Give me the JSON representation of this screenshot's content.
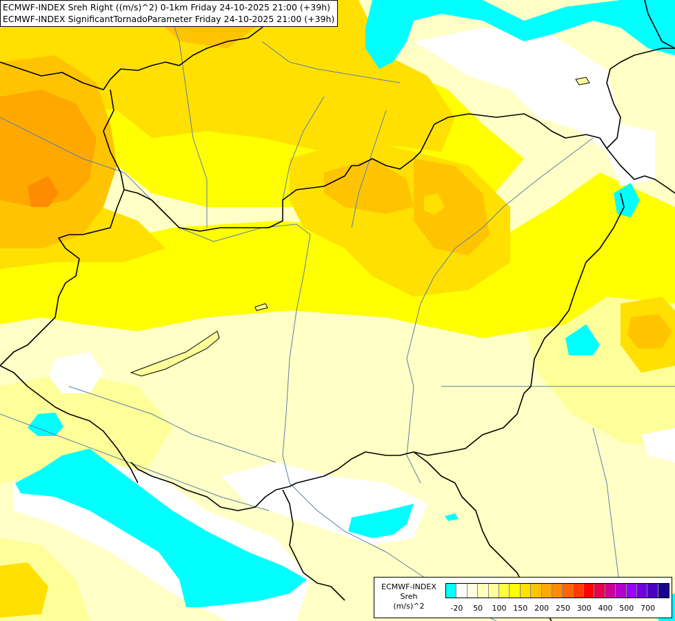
{
  "title_lines": [
    "ECMWF-INDEX Sreh Right ((m/s)^2) 0-1km Friday 24-10-2025 21:00 (+39h)",
    "ECMWF-INDEX SignificantTornadoParameter Friday 24-10-2025 21:00 (+39h)"
  ],
  "legend": {
    "line1": "ECMWF-INDEX",
    "line2": "Sreh",
    "line3": "(m/s)^2",
    "colors": [
      "#00ffff",
      "#ffffff",
      "#ffffe0",
      "#ffffc0",
      "#ffff99",
      "#ffff40",
      "#ffff00",
      "#ffe000",
      "#ffc400",
      "#ffa800",
      "#ff8c00",
      "#ff6400",
      "#ff3c00",
      "#ff0000",
      "#e6004c",
      "#cc0099",
      "#b400cc",
      "#9900ff",
      "#7000e0",
      "#4a00c0",
      "#1a0090"
    ],
    "ticks": [
      "-20",
      "50",
      "100",
      "150",
      "200",
      "250",
      "300",
      "400",
      "500",
      "700"
    ]
  },
  "fill_colors": {
    "background": "#ffffc6",
    "light_yellow": "#ffff99",
    "yellow": "#ffff00",
    "gold": "#ffe000",
    "orange_light": "#ffc400",
    "orange": "#ffa800",
    "red_orange": "#ff8c00",
    "cyan": "#00ffff",
    "white": "#ffffff"
  },
  "border_color": "#000000",
  "river_color": "#5a7fa8"
}
